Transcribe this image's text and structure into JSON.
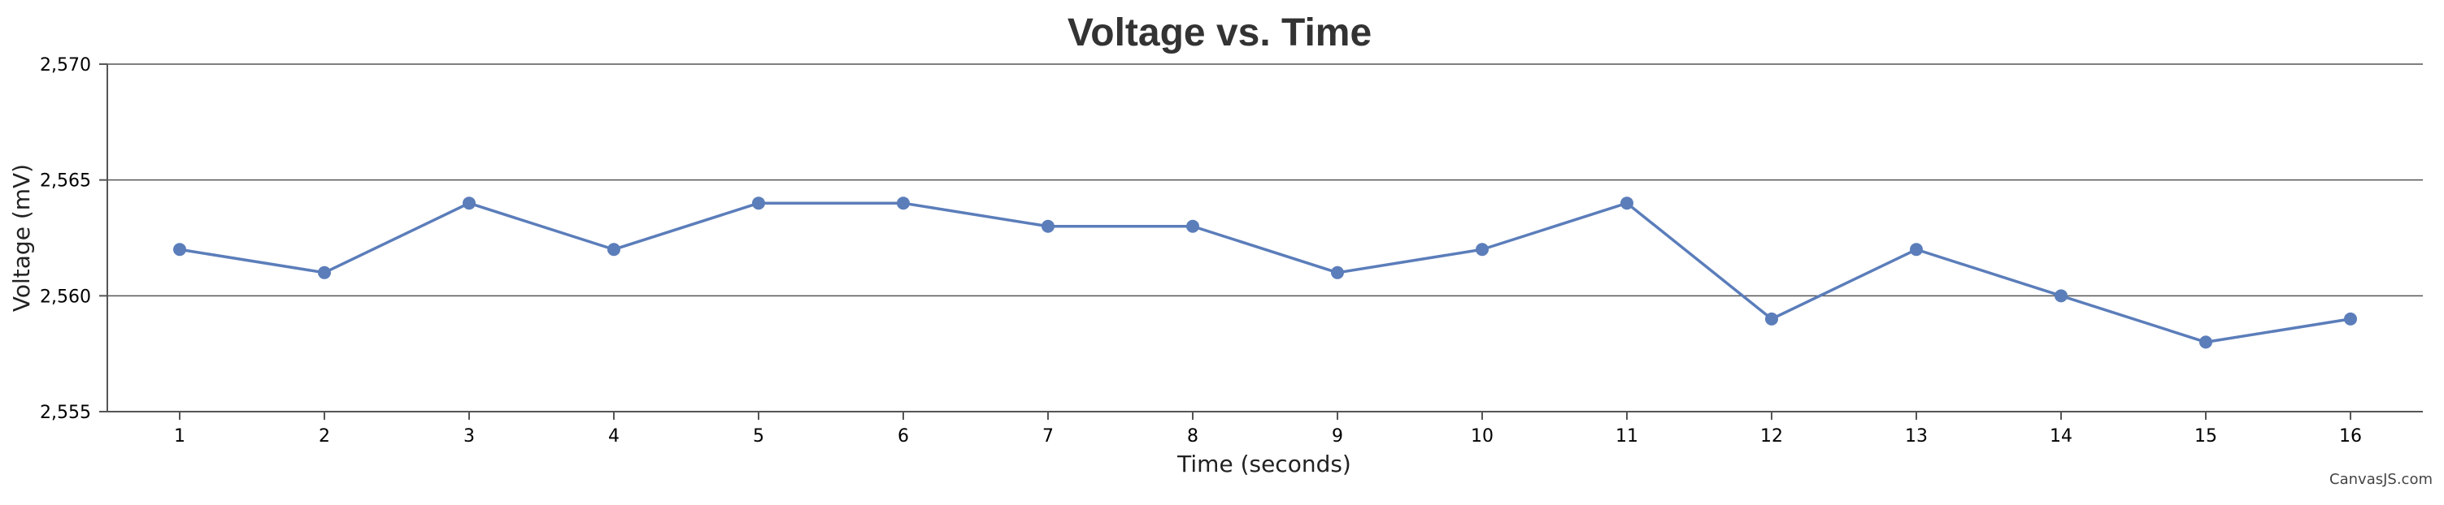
{
  "chart_data": {
    "type": "line",
    "title": "Voltage vs. Time",
    "xlabel": "Time (seconds)",
    "ylabel": "Voltage (mV)",
    "x": [
      1,
      2,
      3,
      4,
      5,
      6,
      7,
      8,
      9,
      10,
      11,
      12,
      13,
      14,
      15,
      16
    ],
    "series": [
      {
        "values": [
          2562,
          2561,
          2564,
          2562,
          2564,
          2564,
          2563,
          2563,
          2561,
          2562,
          2564,
          2559,
          2562,
          2560,
          2558,
          2559
        ],
        "color": "#5b7dba"
      }
    ],
    "ylim": [
      2555,
      2570
    ],
    "yticks": [
      "2,555",
      "2,560",
      "2,565",
      "2,570"
    ],
    "xticks": [
      "1",
      "2",
      "3",
      "4",
      "5",
      "6",
      "7",
      "8",
      "9",
      "10",
      "11",
      "12",
      "13",
      "14",
      "15",
      "16"
    ],
    "grid": true,
    "credit": "CanvasJS.com"
  }
}
